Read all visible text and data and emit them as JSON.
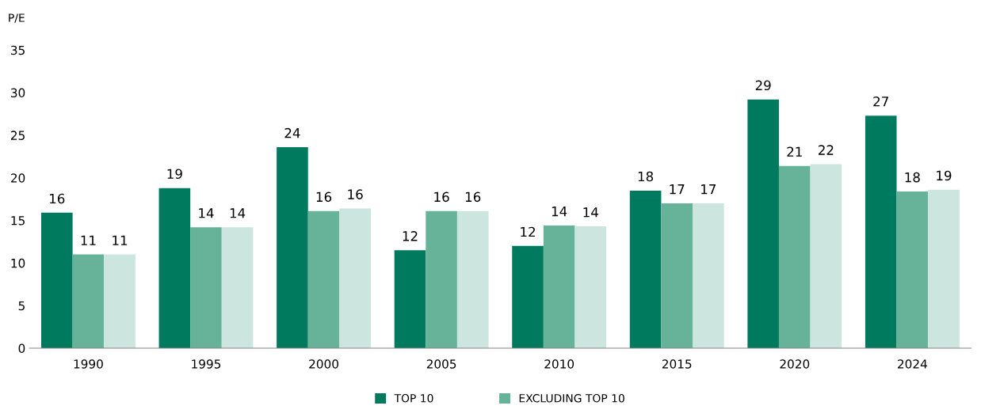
{
  "chart_data": {
    "type": "bar",
    "ylabel": "P/E",
    "categories": [
      "1990",
      "1995",
      "2000",
      "2005",
      "2010",
      "2015",
      "2020",
      "2024"
    ],
    "series": [
      {
        "name": "TOP 10",
        "color": "#007a5e",
        "values": [
          15.9,
          18.8,
          23.6,
          11.5,
          12.0,
          18.5,
          29.2,
          27.3
        ],
        "value_labels": [
          "16",
          "19",
          "24",
          "12",
          "12",
          "18",
          "29",
          "27"
        ]
      },
      {
        "name": "EXCLUDING TOP 10",
        "color": "#66b39a",
        "values": [
          11.0,
          14.2,
          16.1,
          16.1,
          14.4,
          17.0,
          21.4,
          18.4
        ],
        "value_labels": [
          "11",
          "14",
          "16",
          "16",
          "14",
          "17",
          "21",
          "18"
        ]
      },
      {
        "color": "#cce5df",
        "values": [
          11.0,
          14.2,
          16.4,
          16.1,
          14.3,
          17.0,
          21.6,
          18.6
        ],
        "value_labels": [
          "11",
          "14",
          "16",
          "16",
          "14",
          "17",
          "22",
          "19"
        ]
      }
    ],
    "ylim": [
      0,
      35
    ],
    "yticks": [
      0,
      5,
      10,
      15,
      20,
      25,
      30,
      35
    ],
    "grid": false,
    "legend": "bottom"
  }
}
